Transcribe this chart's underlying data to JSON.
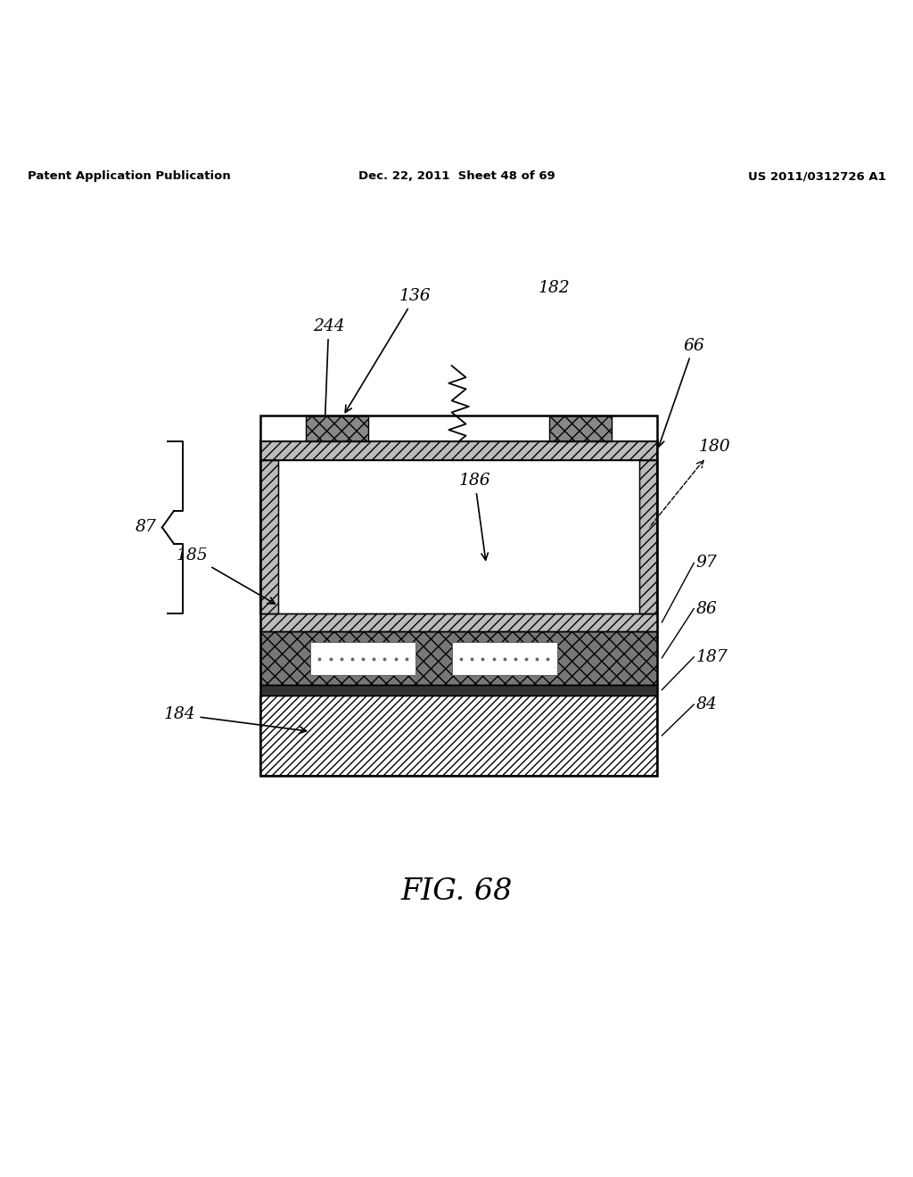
{
  "bg_color": "#ffffff",
  "title_text": "FIG. 68",
  "header_left": "Patent Application Publication",
  "header_mid": "Dec. 22, 2011  Sheet 48 of 69",
  "header_right": "US 2011/0312726 A1"
}
